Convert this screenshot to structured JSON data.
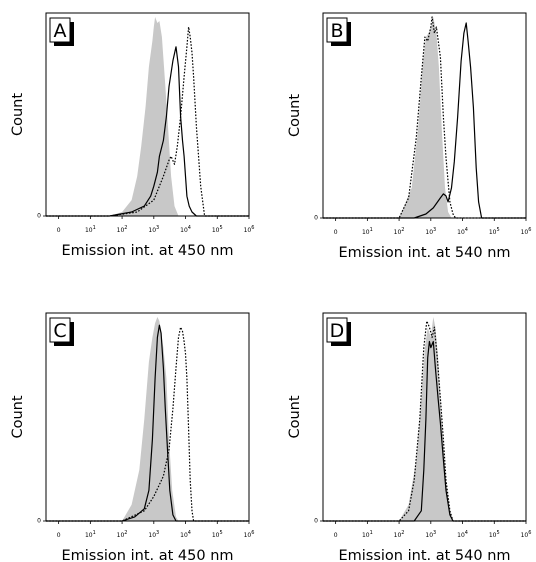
{
  "chart_data": [
    {
      "type": "area",
      "panel_label": "A",
      "xlabel": "Emission int. at 450 nm",
      "ylabel": "Count",
      "x_scale": "log",
      "xlim": [
        0.4,
        1000000
      ],
      "ylim": [
        0,
        100
      ],
      "x_ticks": [
        {
          "value": 1,
          "label": "0"
        },
        {
          "value": 10,
          "label": "10^1"
        },
        {
          "value": 100,
          "label": "10^2"
        },
        {
          "value": 1000,
          "label": "10^3"
        },
        {
          "value": 10000,
          "label": "10^4"
        },
        {
          "value": 100000,
          "label": "10^5"
        },
        {
          "value": 1000000,
          "label": "10^6"
        }
      ],
      "y_ticks": [
        {
          "value": 0,
          "label": "0"
        }
      ],
      "series": [
        {
          "style": "filled-gray",
          "x": [
            40,
            100,
            200,
            300,
            400,
            550,
            700,
            900,
            1000,
            1100,
            1300,
            1500,
            1800,
            2200,
            2800,
            3500,
            4500,
            6000
          ],
          "y": [
            0,
            2,
            8,
            20,
            35,
            55,
            75,
            88,
            95,
            100,
            97,
            98,
            90,
            70,
            45,
            20,
            5,
            0
          ]
        },
        {
          "style": "solid",
          "x": [
            40,
            200,
            500,
            800,
            1000,
            1300,
            1500,
            2000,
            2500,
            3000,
            4000,
            5000,
            6000,
            7000,
            8000,
            9000,
            10000,
            11000,
            13000,
            16000,
            22000
          ],
          "y": [
            0,
            2,
            5,
            10,
            15,
            22,
            30,
            38,
            50,
            65,
            78,
            85,
            75,
            50,
            38,
            30,
            20,
            10,
            5,
            2,
            0
          ]
        },
        {
          "style": "dotted",
          "x": [
            40,
            300,
            1000,
            2000,
            3000,
            3500,
            4500,
            5500,
            7000,
            9000,
            11000,
            12500,
            14000,
            16000,
            18000,
            22000,
            30000,
            40000
          ],
          "y": [
            0,
            2,
            8,
            20,
            28,
            30,
            26,
            35,
            50,
            70,
            85,
            95,
            90,
            82,
            70,
            45,
            15,
            0
          ]
        }
      ]
    },
    {
      "type": "area",
      "panel_label": "B",
      "xlabel": "Emission int. at 540 nm",
      "ylabel": "Count",
      "x_scale": "log",
      "xlim": [
        0.4,
        1000000
      ],
      "ylim": [
        0,
        100
      ],
      "x_ticks": [
        {
          "value": 1,
          "label": "0"
        },
        {
          "value": 10,
          "label": "10^1"
        },
        {
          "value": 100,
          "label": "10^2"
        },
        {
          "value": 1000,
          "label": "10^3"
        },
        {
          "value": 10000,
          "label": "10^4"
        },
        {
          "value": 100000,
          "label": "10^5"
        },
        {
          "value": 1000000,
          "label": "10^6"
        }
      ],
      "y_ticks": [
        {
          "value": 0,
          "label": "0"
        }
      ],
      "series": [
        {
          "style": "filled-gray",
          "x": [
            100,
            250,
            400,
            550,
            700,
            850,
            1000,
            1200,
            1500,
            1800,
            2200,
            2800,
            3500,
            4500
          ],
          "y": [
            0,
            15,
            45,
            75,
            90,
            92,
            95,
            100,
            92,
            75,
            45,
            15,
            3,
            0
          ]
        },
        {
          "style": "dotted",
          "x": [
            100,
            200,
            350,
            500,
            650,
            800,
            1000,
            1100,
            1300,
            1500,
            2000,
            2500,
            3000,
            3500,
            4000,
            5000,
            6000
          ],
          "y": [
            0,
            10,
            40,
            70,
            90,
            88,
            95,
            100,
            92,
            95,
            80,
            50,
            30,
            18,
            8,
            2,
            0
          ]
        },
        {
          "style": "solid",
          "x": [
            300,
            700,
            1200,
            2000,
            2500,
            3000,
            3500,
            4500,
            5500,
            7000,
            9000,
            11000,
            13000,
            15000,
            18000,
            22000,
            27000,
            32000,
            40000
          ],
          "y": [
            0,
            2,
            5,
            10,
            12,
            11,
            8,
            15,
            28,
            50,
            78,
            92,
            97,
            88,
            75,
            55,
            25,
            8,
            0
          ]
        }
      ]
    },
    {
      "type": "area",
      "panel_label": "C",
      "xlabel": "Emission int. at 450 nm",
      "ylabel": "Count",
      "x_scale": "log",
      "xlim": [
        0.4,
        1000000
      ],
      "ylim": [
        0,
        100
      ],
      "x_ticks": [
        {
          "value": 1,
          "label": "0"
        },
        {
          "value": 10,
          "label": "10^1"
        },
        {
          "value": 100,
          "label": "10^2"
        },
        {
          "value": 1000,
          "label": "10^3"
        },
        {
          "value": 10000,
          "label": "10^4"
        },
        {
          "value": 100000,
          "label": "10^5"
        },
        {
          "value": 1000000,
          "label": "10^6"
        }
      ],
      "y_ticks": [
        {
          "value": 0,
          "label": "0"
        }
      ],
      "series": [
        {
          "style": "filled-gray",
          "x": [
            100,
            200,
            350,
            500,
            700,
            900,
            1100,
            1300,
            1500,
            1700,
            2000,
            2500,
            3000,
            3800,
            5000,
            6000
          ],
          "y": [
            0,
            8,
            25,
            50,
            78,
            90,
            97,
            100,
            98,
            92,
            85,
            70,
            40,
            15,
            2,
            0
          ]
        },
        {
          "style": "solid",
          "x": [
            100,
            250,
            500,
            700,
            900,
            1100,
            1300,
            1500,
            1700,
            2000,
            2300,
            2700,
            3200,
            4000,
            5000
          ],
          "y": [
            0,
            2,
            6,
            15,
            40,
            70,
            90,
            96,
            92,
            75,
            55,
            35,
            15,
            3,
            0
          ]
        },
        {
          "style": "dotted",
          "x": [
            100,
            500,
            1000,
            2000,
            3000,
            4000,
            5000,
            6000,
            7000,
            8000,
            9000,
            10000,
            11000,
            12500,
            14000,
            16000,
            18000
          ],
          "y": [
            0,
            5,
            12,
            22,
            35,
            55,
            75,
            90,
            95,
            93,
            88,
            82,
            70,
            45,
            20,
            5,
            0
          ]
        }
      ]
    },
    {
      "type": "area",
      "panel_label": "D",
      "xlabel": "Emission int. at 540 nm",
      "ylabel": "Count",
      "x_scale": "log",
      "xlim": [
        0.4,
        1000000
      ],
      "ylim": [
        0,
        100
      ],
      "x_ticks": [
        {
          "value": 1,
          "label": "0"
        },
        {
          "value": 10,
          "label": "10^1"
        },
        {
          "value": 100,
          "label": "10^2"
        },
        {
          "value": 1000,
          "label": "10^3"
        },
        {
          "value": 10000,
          "label": "10^4"
        },
        {
          "value": 100000,
          "label": "10^5"
        },
        {
          "value": 1000000,
          "label": "10^6"
        }
      ],
      "y_ticks": [
        {
          "value": 0,
          "label": "0"
        }
      ],
      "series": [
        {
          "style": "filled-gray",
          "x": [
            100,
            200,
            350,
            500,
            650,
            800,
            1000,
            1200,
            1400,
            1700,
            2000,
            2500,
            3000,
            4000,
            5000
          ],
          "y": [
            0,
            8,
            30,
            60,
            85,
            95,
            90,
            100,
            95,
            80,
            60,
            40,
            20,
            5,
            0
          ]
        },
        {
          "style": "dotted",
          "x": [
            100,
            200,
            300,
            450,
            600,
            750,
            900,
            1100,
            1300,
            1600,
            2000,
            2500,
            3000,
            4000,
            5000
          ],
          "y": [
            0,
            5,
            20,
            50,
            85,
            98,
            95,
            90,
            95,
            80,
            60,
            40,
            20,
            5,
            0
          ]
        },
        {
          "style": "solid",
          "x": [
            300,
            500,
            600,
            700,
            800,
            900,
            1000,
            1200,
            1400,
            1700,
            2000,
            2500,
            3000,
            4000,
            5000
          ],
          "y": [
            0,
            5,
            25,
            50,
            80,
            88,
            85,
            88,
            75,
            60,
            48,
            30,
            15,
            3,
            0
          ]
        }
      ]
    }
  ]
}
